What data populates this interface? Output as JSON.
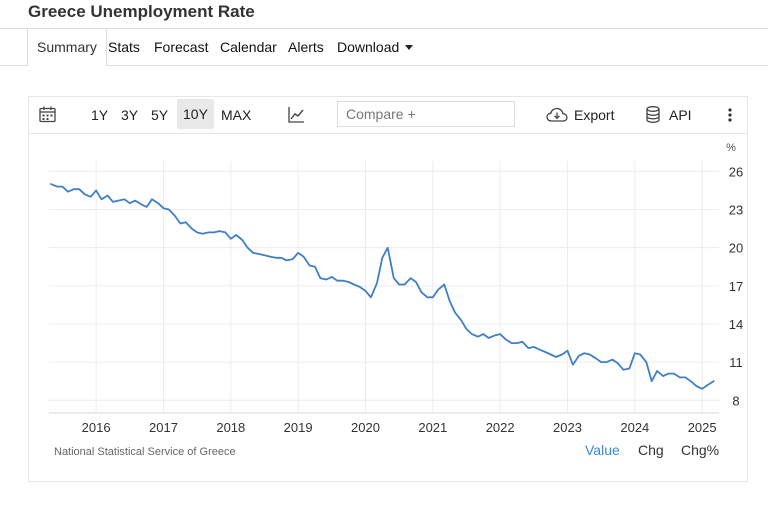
{
  "page": {
    "title": "Greece Unemployment Rate"
  },
  "tabs": [
    {
      "label": "Summary"
    },
    {
      "label": "Stats"
    },
    {
      "label": "Forecast"
    },
    {
      "label": "Calendar"
    },
    {
      "label": "Alerts"
    },
    {
      "label": "Download"
    }
  ],
  "toolbar": {
    "ranges": [
      "1Y",
      "3Y",
      "5Y",
      "10Y",
      "MAX"
    ],
    "selected_range": "10Y",
    "compare_placeholder": "Compare +",
    "export_label": "Export",
    "api_label": "API",
    "icons": [
      "calendar-icon",
      "line-chart-icon",
      "cloud-download-icon",
      "database-icon",
      "more-vertical-icon"
    ]
  },
  "footer": {
    "source": "National Statistical Service of Greece",
    "views": [
      "Value",
      "Chg",
      "Chg%"
    ],
    "selected_view": "Value"
  },
  "colors": {
    "line": "#3f7fc4",
    "accent": "#3b8bd1"
  },
  "chart_data": {
    "type": "line",
    "title": "",
    "xlabel": "",
    "ylabel": "%",
    "x_ticks": [
      "2016",
      "2017",
      "2018",
      "2019",
      "2020",
      "2021",
      "2022",
      "2023",
      "2024",
      "2025"
    ],
    "y_ticks": [
      8,
      11,
      14,
      17,
      20,
      23,
      26
    ],
    "ylim": [
      7,
      26.5
    ],
    "xlim": [
      2015.3,
      2025.25
    ],
    "grid": true,
    "y_axis_position": "right",
    "series": [
      {
        "x": [
          2015.33,
          2015.42,
          2015.5,
          2015.58,
          2015.67,
          2015.75,
          2015.83,
          2015.92,
          2016.0,
          2016.08,
          2016.17,
          2016.25,
          2016.33,
          2016.42,
          2016.5,
          2016.58,
          2016.67,
          2016.75,
          2016.83,
          2016.92,
          2017.0,
          2017.08,
          2017.17,
          2017.25,
          2017.33,
          2017.42,
          2017.5,
          2017.58,
          2017.67,
          2017.75,
          2017.83,
          2017.92,
          2018.0,
          2018.08,
          2018.17,
          2018.25,
          2018.33,
          2018.42,
          2018.5,
          2018.58,
          2018.67,
          2018.75,
          2018.83,
          2018.92,
          2019.0,
          2019.08,
          2019.17,
          2019.25,
          2019.33,
          2019.42,
          2019.5,
          2019.58,
          2019.67,
          2019.75,
          2019.83,
          2019.92,
          2020.0,
          2020.08,
          2020.17,
          2020.25,
          2020.33,
          2020.42,
          2020.5,
          2020.58,
          2020.67,
          2020.75,
          2020.83,
          2020.92,
          2021.0,
          2021.08,
          2021.17,
          2021.25,
          2021.33,
          2021.42,
          2021.5,
          2021.58,
          2021.67,
          2021.75,
          2021.83,
          2021.92,
          2022.0,
          2022.08,
          2022.17,
          2022.25,
          2022.33,
          2022.42,
          2022.5,
          2022.58,
          2022.67,
          2022.75,
          2022.83,
          2022.92,
          2023.0,
          2023.08,
          2023.17,
          2023.25,
          2023.33,
          2023.42,
          2023.5,
          2023.58,
          2023.67,
          2023.75,
          2023.83,
          2023.92,
          2024.0,
          2024.08,
          2024.17,
          2024.25,
          2024.33,
          2024.42,
          2024.5,
          2024.58,
          2024.67,
          2024.75,
          2024.83,
          2024.92,
          2025.0,
          2025.08,
          2025.17
        ],
        "values": [
          25.0,
          24.8,
          24.8,
          24.4,
          24.6,
          24.6,
          24.2,
          24.0,
          24.5,
          23.8,
          24.1,
          23.6,
          23.7,
          23.8,
          23.5,
          23.7,
          23.4,
          23.2,
          23.8,
          23.5,
          23.1,
          23.0,
          22.5,
          21.9,
          22.0,
          21.5,
          21.2,
          21.1,
          21.2,
          21.2,
          21.3,
          21.2,
          20.7,
          21.0,
          20.6,
          20.0,
          19.6,
          19.5,
          19.4,
          19.3,
          19.2,
          19.2,
          19.0,
          19.1,
          19.6,
          19.3,
          18.6,
          18.5,
          17.6,
          17.5,
          17.7,
          17.4,
          17.4,
          17.3,
          17.1,
          16.9,
          16.6,
          16.1,
          17.2,
          19.2,
          20.0,
          17.6,
          17.1,
          17.1,
          17.6,
          17.3,
          16.5,
          16.1,
          16.1,
          16.7,
          17.1,
          15.8,
          14.9,
          14.3,
          13.6,
          13.2,
          13.0,
          13.2,
          12.9,
          13.1,
          13.2,
          12.8,
          12.5,
          12.5,
          12.6,
          12.1,
          12.2,
          12.0,
          11.8,
          11.6,
          11.4,
          11.6,
          11.9,
          10.8,
          11.5,
          11.7,
          11.6,
          11.3,
          11.0,
          11.0,
          11.2,
          10.9,
          10.4,
          10.5,
          11.7,
          11.6,
          11.0,
          9.5,
          10.3,
          9.9,
          10.1,
          10.1,
          9.8,
          9.8,
          9.5,
          9.1,
          8.9,
          9.2,
          9.5
        ]
      }
    ]
  }
}
